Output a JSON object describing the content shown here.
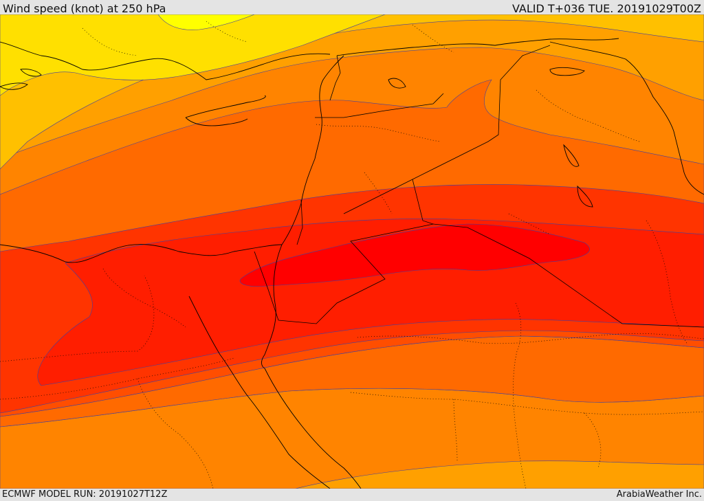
{
  "header": {
    "title": "Wind speed (knot) at 250 hPa",
    "valid": "VALID T+036 TUE. 20191029T00Z"
  },
  "footer": {
    "model_run": "ECMWF MODEL RUN: 20191027T12Z",
    "credit": "ArabiaWeather Inc."
  },
  "colors": {
    "band_1": "#ffff00",
    "band_2": "#ffe000",
    "band_3": "#ffc000",
    "band_4": "#ffa000",
    "band_5": "#ff8400",
    "band_6": "#ff6a00",
    "band_7": "#ff4e00",
    "band_8": "#ff3400",
    "band_9": "#ff1e00",
    "band_10": "#ff0000",
    "contour_line": "#4040a0",
    "border_line": "#000000"
  }
}
